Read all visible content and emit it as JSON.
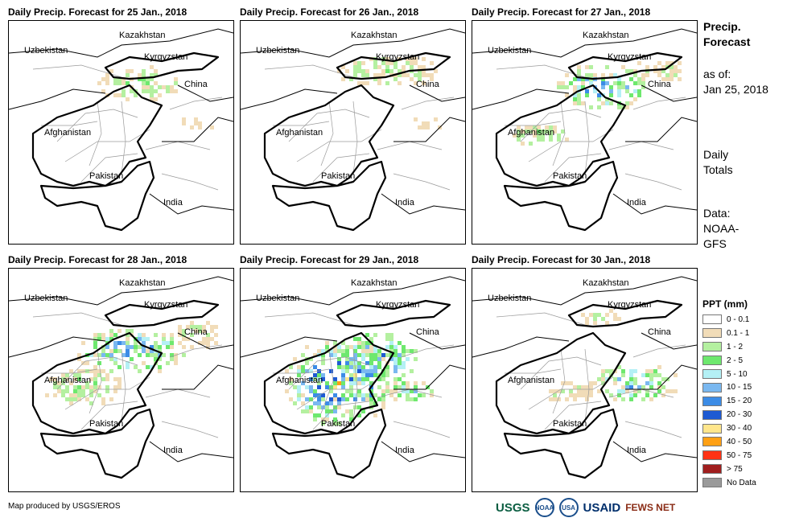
{
  "panels": [
    {
      "title": "Daily Precip. Forecast for 25 Jan., 2018",
      "precip_level": 1
    },
    {
      "title": "Daily Precip. Forecast for 26 Jan., 2018",
      "precip_level": 1
    },
    {
      "title": "Daily Precip. Forecast for 27 Jan., 2018",
      "precip_level": 2
    },
    {
      "title": "Daily Precip. Forecast for 28 Jan., 2018",
      "precip_level": 2
    },
    {
      "title": "Daily Precip. Forecast for 29 Jan., 2018",
      "precip_level": 4
    },
    {
      "title": "Daily Precip. Forecast for 30 Jan., 2018",
      "precip_level": 2
    }
  ],
  "map_labels": {
    "kazakhstan": "Kazakhstan",
    "uzbekistan": "Uzbekistan",
    "kyrgyzstan": "Kyrgyzstan",
    "china": "China",
    "afghanistan": "Afghanistan",
    "pakistan": "Pakistan",
    "india": "India"
  },
  "side": {
    "title_line1": "Precip.",
    "title_line2": "Forecast",
    "asof_line1": "as of:",
    "asof_line2": "Jan 25, 2018",
    "totals_line1": "Daily",
    "totals_line2": "Totals",
    "data_line1": "Data:",
    "data_line2": "NOAA-",
    "data_line3": "GFS"
  },
  "legend": {
    "title": "PPT (mm)",
    "items": [
      {
        "label": "0 - 0.1",
        "color": "#ffffff"
      },
      {
        "label": "0.1 - 1",
        "color": "#f1dcb8"
      },
      {
        "label": "1 - 2",
        "color": "#b4f0a0"
      },
      {
        "label": "2 - 5",
        "color": "#6ee86e"
      },
      {
        "label": "5 - 10",
        "color": "#b4f0f5"
      },
      {
        "label": "10 - 15",
        "color": "#7ab8f0"
      },
      {
        "label": "15 - 20",
        "color": "#3c8ce6"
      },
      {
        "label": "20 - 30",
        "color": "#1e5ad2"
      },
      {
        "label": "30 - 40",
        "color": "#ffe68c"
      },
      {
        "label": "40 - 50",
        "color": "#ffa014"
      },
      {
        "label": "50 - 75",
        "color": "#ff3214"
      },
      {
        "label": "> 75",
        "color": "#a01e1e"
      },
      {
        "label": "No Data",
        "color": "#9a9a9a"
      }
    ]
  },
  "credit": "Map produced by USGS/EROS",
  "logos": {
    "usgs": "USGS",
    "noaa": "NOAA",
    "usaid_seal": "USA",
    "usaid": "USAID",
    "fews": "FEWS NET"
  }
}
